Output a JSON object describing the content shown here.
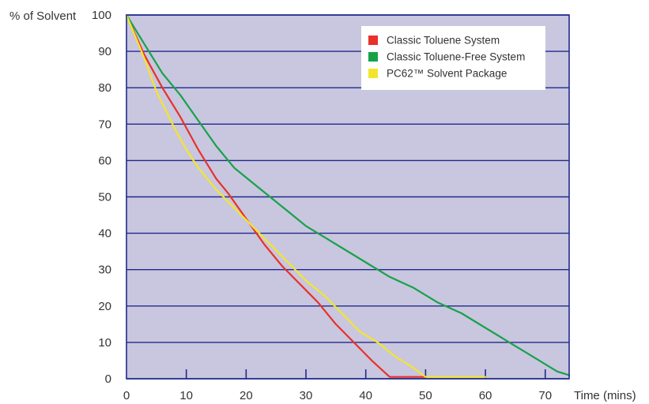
{
  "chart_data": {
    "type": "line",
    "title": "",
    "xlabel": "Time (mins)",
    "ylabel": "% of Solvent",
    "xlim": [
      0,
      74
    ],
    "ylim": [
      0,
      100
    ],
    "x_ticks": [
      0,
      10,
      20,
      30,
      40,
      50,
      60,
      70
    ],
    "y_ticks": [
      0,
      10,
      20,
      30,
      40,
      50,
      60,
      70,
      80,
      90,
      100
    ],
    "grid": "horizontal",
    "legend_position": "top-right",
    "plot_background": "#c9c6df",
    "grid_color": "#1f2a8c",
    "series": [
      {
        "name": "Classic Toluene System",
        "color": "#e8312a",
        "points": [
          [
            0,
            100
          ],
          [
            3,
            89
          ],
          [
            6,
            80
          ],
          [
            9,
            72
          ],
          [
            12,
            63
          ],
          [
            15,
            55
          ],
          [
            17,
            51
          ],
          [
            20,
            44
          ],
          [
            23,
            37
          ],
          [
            26,
            31
          ],
          [
            29,
            26
          ],
          [
            32,
            21
          ],
          [
            35,
            15
          ],
          [
            38,
            10
          ],
          [
            41,
            5
          ],
          [
            43,
            2
          ],
          [
            44,
            0.5
          ],
          [
            50,
            0.5
          ]
        ]
      },
      {
        "name": "Classic Toluene-Free System",
        "color": "#17a24a",
        "points": [
          [
            0,
            100
          ],
          [
            3,
            92
          ],
          [
            6,
            84
          ],
          [
            9,
            78
          ],
          [
            12,
            71
          ],
          [
            15,
            64
          ],
          [
            18,
            58
          ],
          [
            21,
            54
          ],
          [
            24,
            50
          ],
          [
            27,
            46
          ],
          [
            30,
            42
          ],
          [
            33,
            39
          ],
          [
            36,
            36
          ],
          [
            40,
            32
          ],
          [
            44,
            28
          ],
          [
            48,
            25
          ],
          [
            52,
            21
          ],
          [
            56,
            18
          ],
          [
            60,
            14
          ],
          [
            64,
            10
          ],
          [
            68,
            6
          ],
          [
            72,
            2
          ],
          [
            74,
            1
          ]
        ]
      },
      {
        "name": "PC62™ Solvent Package",
        "color": "#f2e62c",
        "points": [
          [
            0,
            100
          ],
          [
            3,
            88
          ],
          [
            5,
            79
          ],
          [
            8,
            69
          ],
          [
            10,
            63
          ],
          [
            12,
            58
          ],
          [
            15,
            52
          ],
          [
            18,
            47
          ],
          [
            21,
            42
          ],
          [
            24,
            37
          ],
          [
            27,
            32
          ],
          [
            30,
            27
          ],
          [
            33,
            23
          ],
          [
            36,
            18
          ],
          [
            39,
            13
          ],
          [
            42,
            10
          ],
          [
            45,
            6
          ],
          [
            48,
            3
          ],
          [
            50,
            0.5
          ],
          [
            60,
            0.5
          ]
        ]
      }
    ]
  }
}
